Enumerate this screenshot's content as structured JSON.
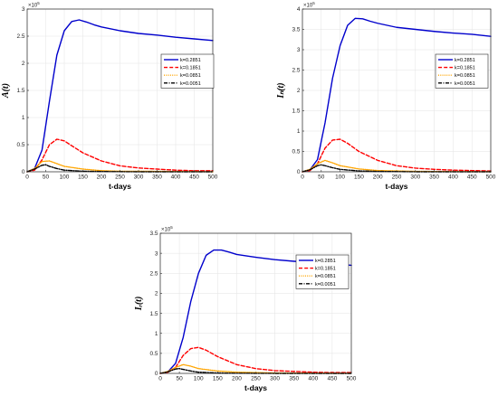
{
  "chart_data": [
    {
      "type": "line",
      "title": "",
      "xlabel": "t-days",
      "ylabel": "A(t)",
      "multiplier": "×10",
      "multiplier_exp": "5",
      "xlim": [
        0,
        500
      ],
      "ylim": [
        0,
        3
      ],
      "x_ticks": [
        0,
        50,
        100,
        150,
        200,
        250,
        300,
        350,
        400,
        450,
        500
      ],
      "y_ticks": [
        0,
        0.5,
        1,
        1.5,
        2,
        2.5,
        3
      ],
      "y_tick_labels": [
        "0",
        "0.5",
        "1",
        "1.5",
        "2",
        "2.5",
        "3"
      ],
      "grid": true,
      "legend_position": "right",
      "series": [
        {
          "name": "k=0.2851",
          "color": "#0000cc",
          "style": "solid",
          "x": [
            0,
            20,
            40,
            60,
            80,
            100,
            120,
            140,
            160,
            180,
            200,
            250,
            300,
            350,
            400,
            450,
            500
          ],
          "y": [
            0,
            0.06,
            0.4,
            1.3,
            2.15,
            2.6,
            2.77,
            2.8,
            2.76,
            2.71,
            2.67,
            2.6,
            2.55,
            2.52,
            2.48,
            2.45,
            2.42
          ]
        },
        {
          "name": "k=0.1851",
          "color": "#ff0000",
          "style": "dashed",
          "x": [
            0,
            20,
            40,
            60,
            80,
            100,
            120,
            150,
            200,
            250,
            300,
            350,
            400,
            450,
            500
          ],
          "y": [
            0,
            0.03,
            0.22,
            0.5,
            0.6,
            0.57,
            0.48,
            0.35,
            0.2,
            0.11,
            0.07,
            0.05,
            0.03,
            0.02,
            0.02
          ]
        },
        {
          "name": "k=0.0851",
          "color": "#ffa500",
          "style": "dotted",
          "x": [
            0,
            20,
            40,
            60,
            80,
            100,
            150,
            200,
            250,
            300,
            400,
            500
          ],
          "y": [
            0,
            0.06,
            0.19,
            0.2,
            0.15,
            0.1,
            0.05,
            0.02,
            0.01,
            0.01,
            0.005,
            0.0
          ]
        },
        {
          "name": "k=0.0051",
          "color": "#000000",
          "style": "dashdot",
          "x": [
            0,
            20,
            40,
            50,
            60,
            80,
            100,
            150,
            200,
            300,
            500
          ],
          "y": [
            0,
            0.05,
            0.12,
            0.13,
            0.1,
            0.06,
            0.03,
            0.01,
            0.005,
            0.0,
            0.0
          ]
        }
      ]
    },
    {
      "type": "line",
      "title": "",
      "xlabel": "t-days",
      "ylabel": "Iₙ(t)",
      "multiplier": "×10",
      "multiplier_exp": "5",
      "xlim": [
        0,
        500
      ],
      "ylim": [
        0,
        4
      ],
      "x_ticks": [
        0,
        50,
        100,
        150,
        200,
        250,
        300,
        350,
        400,
        450,
        500
      ],
      "y_ticks": [
        0,
        0.5,
        1,
        1.5,
        2,
        2.5,
        3,
        3.5,
        4
      ],
      "y_tick_labels": [
        "0",
        "0.5",
        "1",
        "1.5",
        "2",
        "2.5",
        "3",
        "3.5",
        "4"
      ],
      "grid": true,
      "legend_position": "right",
      "series": [
        {
          "name": "k=0.2851",
          "color": "#0000cc",
          "style": "solid",
          "x": [
            0,
            20,
            40,
            60,
            80,
            100,
            120,
            140,
            160,
            180,
            200,
            250,
            300,
            350,
            400,
            450,
            500
          ],
          "y": [
            0,
            0.05,
            0.3,
            1.2,
            2.3,
            3.1,
            3.6,
            3.77,
            3.76,
            3.7,
            3.65,
            3.55,
            3.5,
            3.45,
            3.41,
            3.38,
            3.33
          ]
        },
        {
          "name": "k=0.1851",
          "color": "#ff0000",
          "style": "dashed",
          "x": [
            0,
            20,
            40,
            60,
            80,
            100,
            120,
            150,
            200,
            250,
            300,
            350,
            400,
            450,
            500
          ],
          "y": [
            0,
            0.03,
            0.2,
            0.58,
            0.78,
            0.8,
            0.7,
            0.5,
            0.28,
            0.15,
            0.09,
            0.06,
            0.04,
            0.03,
            0.02
          ]
        },
        {
          "name": "k=0.0851",
          "color": "#ffa500",
          "style": "dotted",
          "x": [
            0,
            20,
            40,
            60,
            80,
            100,
            150,
            200,
            250,
            300,
            400,
            500
          ],
          "y": [
            0,
            0.06,
            0.2,
            0.28,
            0.22,
            0.15,
            0.07,
            0.03,
            0.02,
            0.01,
            0.005,
            0.0
          ]
        },
        {
          "name": "k=0.0051",
          "color": "#000000",
          "style": "dashdot",
          "x": [
            0,
            20,
            40,
            50,
            60,
            80,
            100,
            150,
            200,
            300,
            500
          ],
          "y": [
            0,
            0.05,
            0.15,
            0.17,
            0.15,
            0.1,
            0.06,
            0.02,
            0.01,
            0.0,
            0.0
          ]
        }
      ]
    },
    {
      "type": "line",
      "title": "",
      "xlabel": "t-days",
      "ylabel": "Iᵣ(t)",
      "multiplier": "×10",
      "multiplier_exp": "5",
      "xlim": [
        0,
        500
      ],
      "ylim": [
        0,
        3.5
      ],
      "x_ticks": [
        0,
        50,
        100,
        150,
        200,
        250,
        300,
        350,
        400,
        450,
        500
      ],
      "y_ticks": [
        0,
        0.5,
        1,
        1.5,
        2,
        2.5,
        3,
        3.5
      ],
      "y_tick_labels": [
        "0",
        "0.5",
        "1",
        "1.5",
        "2",
        "2.5",
        "3",
        "3.5"
      ],
      "grid": true,
      "legend_position": "right",
      "series": [
        {
          "name": "k=0.2851",
          "color": "#0000cc",
          "style": "solid",
          "x": [
            0,
            20,
            40,
            60,
            80,
            100,
            120,
            140,
            160,
            180,
            200,
            250,
            300,
            350,
            400,
            450,
            500
          ],
          "y": [
            0,
            0.04,
            0.25,
            0.9,
            1.8,
            2.5,
            2.95,
            3.08,
            3.08,
            3.03,
            2.97,
            2.9,
            2.84,
            2.8,
            2.77,
            2.74,
            2.7
          ]
        },
        {
          "name": "k=0.1851",
          "color": "#ff0000",
          "style": "dashed",
          "x": [
            0,
            20,
            40,
            60,
            80,
            100,
            120,
            150,
            200,
            250,
            300,
            350,
            400,
            450,
            500
          ],
          "y": [
            0,
            0.03,
            0.15,
            0.45,
            0.62,
            0.65,
            0.58,
            0.42,
            0.22,
            0.12,
            0.07,
            0.05,
            0.03,
            0.02,
            0.02
          ]
        },
        {
          "name": "k=0.0851",
          "color": "#ffa500",
          "style": "dotted",
          "x": [
            0,
            20,
            40,
            60,
            80,
            100,
            150,
            200,
            250,
            300,
            400,
            500
          ],
          "y": [
            0,
            0.05,
            0.15,
            0.22,
            0.18,
            0.12,
            0.06,
            0.03,
            0.02,
            0.01,
            0.005,
            0.0
          ]
        },
        {
          "name": "k=0.0051",
          "color": "#000000",
          "style": "dashdot",
          "x": [
            0,
            20,
            40,
            50,
            60,
            80,
            100,
            150,
            200,
            300,
            500
          ],
          "y": [
            0,
            0.04,
            0.11,
            0.12,
            0.1,
            0.06,
            0.03,
            0.01,
            0.005,
            0.0,
            0.0
          ]
        }
      ]
    }
  ]
}
